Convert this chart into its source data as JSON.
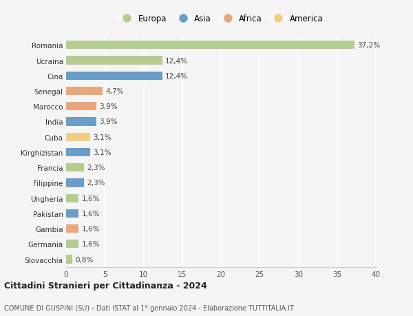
{
  "countries": [
    "Romania",
    "Ucraina",
    "Cina",
    "Senegal",
    "Marocco",
    "India",
    "Cuba",
    "Kirghizistan",
    "Francia",
    "Filippine",
    "Ungheria",
    "Pakistan",
    "Gambia",
    "Germania",
    "Slovacchia"
  ],
  "values": [
    37.2,
    12.4,
    12.4,
    4.7,
    3.9,
    3.9,
    3.1,
    3.1,
    2.3,
    2.3,
    1.6,
    1.6,
    1.6,
    1.6,
    0.8
  ],
  "labels": [
    "37,2%",
    "12,4%",
    "12,4%",
    "4,7%",
    "3,9%",
    "3,9%",
    "3,1%",
    "3,1%",
    "2,3%",
    "2,3%",
    "1,6%",
    "1,6%",
    "1,6%",
    "1,6%",
    "0,8%"
  ],
  "continents": [
    "Europa",
    "Europa",
    "Asia",
    "Africa",
    "Africa",
    "Asia",
    "America",
    "Asia",
    "Europa",
    "Asia",
    "Europa",
    "Asia",
    "Africa",
    "Europa",
    "Europa"
  ],
  "colors": {
    "Europa": "#b5cc8e",
    "Asia": "#6a9dc8",
    "Africa": "#e8a87c",
    "America": "#f0d080"
  },
  "legend_order": [
    "Europa",
    "Asia",
    "Africa",
    "America"
  ],
  "title": "Cittadini Stranieri per Cittadinanza - 2024",
  "subtitle": "COMUNE DI GUSPINI (SU) - Dati ISTAT al 1° gennaio 2024 - Elaborazione TUTTITALIA.IT",
  "xlim": [
    0,
    40
  ],
  "xticks": [
    0,
    5,
    10,
    15,
    20,
    25,
    30,
    35,
    40
  ],
  "background_color": "#f5f5f5",
  "grid_color": "#ffffff"
}
